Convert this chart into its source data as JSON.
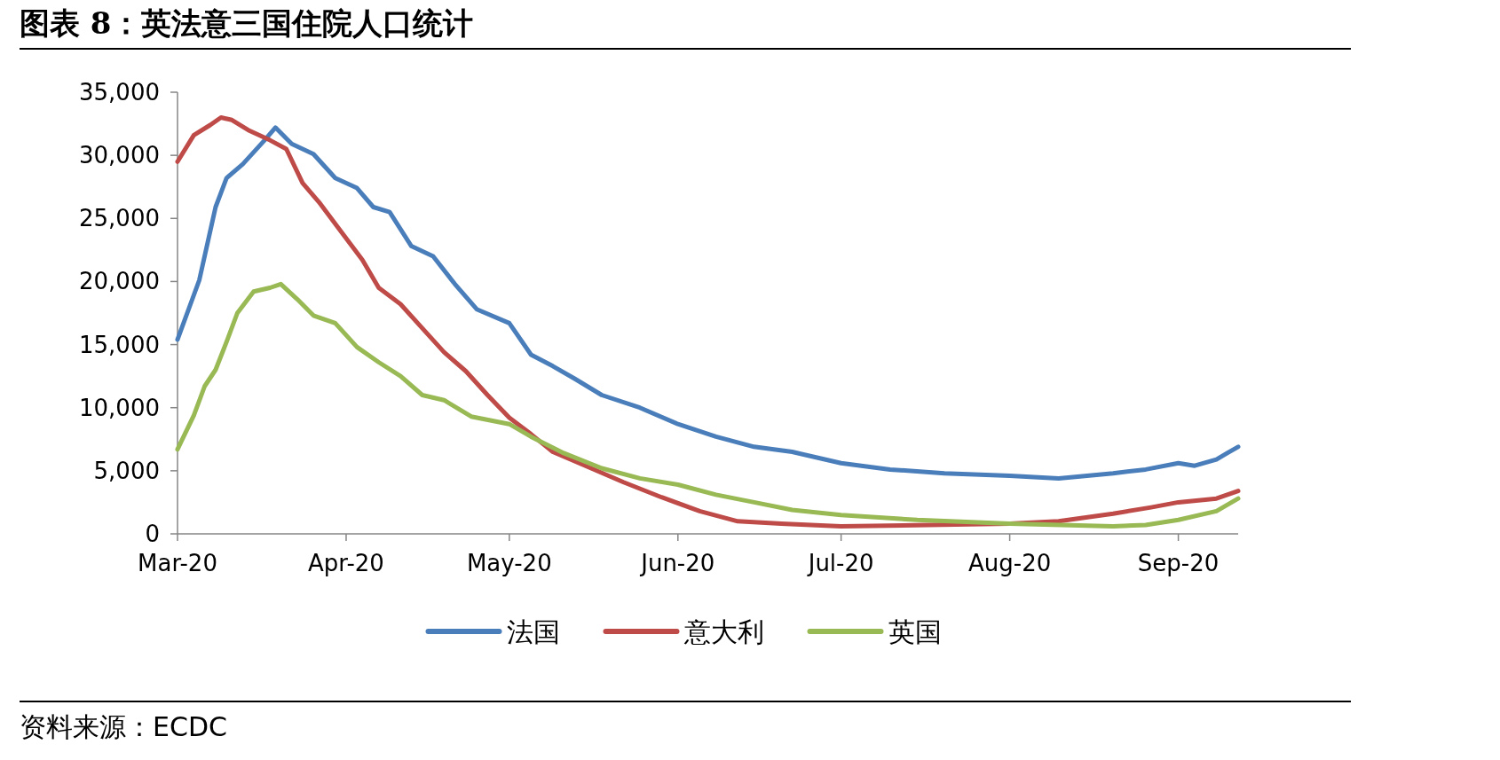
{
  "chart_data": {
    "type": "line",
    "title": "图表 8：英法意三国住院人口统计",
    "annotations": [
      "资料来源：ECDC"
    ],
    "legend": "bottom",
    "xlim": [
      "2020-03-01",
      "2020-09-12"
    ],
    "xticks": [
      {
        "value": "2020-03-01",
        "label": "Mar-20"
      },
      {
        "value": "2020-04-01",
        "label": "Apr-20"
      },
      {
        "value": "2020-05-01",
        "label": "May-20"
      },
      {
        "value": "2020-06-01",
        "label": "Jun-20"
      },
      {
        "value": "2020-07-01",
        "label": "Jul-20"
      },
      {
        "value": "2020-08-01",
        "label": "Aug-20"
      },
      {
        "value": "2020-09-01",
        "label": "Sep-20"
      }
    ],
    "ylim": [
      0,
      35000
    ],
    "yticks": [
      0,
      {
        "value": 5000,
        "label": "5,000"
      },
      {
        "value": 10000,
        "label": "10,000"
      },
      {
        "value": 15000,
        "label": "15,000"
      },
      {
        "value": 20000,
        "label": "20,000"
      },
      {
        "value": 25000,
        "label": "25,000"
      },
      {
        "value": 30000,
        "label": "30,000"
      },
      {
        "value": 35000,
        "label": "35,000"
      }
    ],
    "series": [
      {
        "name": "法国",
        "color": "#4a7ebb",
        "x": [
          "2020-03-01",
          "2020-03-05",
          "2020-03-08",
          "2020-03-10",
          "2020-03-13",
          "2020-03-17",
          "2020-03-19",
          "2020-03-22",
          "2020-03-26",
          "2020-03-30",
          "2020-04-03",
          "2020-04-06",
          "2020-04-09",
          "2020-04-13",
          "2020-04-17",
          "2020-04-21",
          "2020-04-25",
          "2020-05-01",
          "2020-05-05",
          "2020-05-09",
          "2020-05-13",
          "2020-05-18",
          "2020-05-25",
          "2020-06-01",
          "2020-06-08",
          "2020-06-15",
          "2020-06-22",
          "2020-07-01",
          "2020-07-10",
          "2020-07-20",
          "2020-08-01",
          "2020-08-10",
          "2020-08-20",
          "2020-08-26",
          "2020-09-01",
          "2020-09-04",
          "2020-09-08",
          "2020-09-10",
          "2020-09-12"
        ],
        "values": [
          15400,
          20100,
          25900,
          28200,
          29300,
          31200,
          32200,
          30900,
          30100,
          28200,
          27400,
          25900,
          25500,
          22800,
          22000,
          19800,
          17800,
          16700,
          14200,
          13300,
          12300,
          11000,
          10000,
          8700,
          7700,
          6900,
          6500,
          5600,
          5100,
          4800,
          4600,
          4400,
          4800,
          5100,
          5600,
          5400,
          5900,
          6400,
          6900
        ]
      },
      {
        "name": "意大利",
        "color": "#be4b48",
        "x": [
          "2020-03-01",
          "2020-03-04",
          "2020-03-07",
          "2020-03-09",
          "2020-03-11",
          "2020-03-14",
          "2020-03-18",
          "2020-03-21",
          "2020-03-24",
          "2020-03-27",
          "2020-03-31",
          "2020-04-04",
          "2020-04-07",
          "2020-04-11",
          "2020-04-15",
          "2020-04-19",
          "2020-04-23",
          "2020-04-27",
          "2020-05-01",
          "2020-05-05",
          "2020-05-09",
          "2020-05-15",
          "2020-05-22",
          "2020-05-29",
          "2020-06-05",
          "2020-06-12",
          "2020-06-20",
          "2020-07-01",
          "2020-08-01",
          "2020-08-10",
          "2020-08-20",
          "2020-08-27",
          "2020-09-01",
          "2020-09-08",
          "2020-09-12"
        ],
        "values": [
          29500,
          31600,
          32400,
          33000,
          32800,
          32000,
          31200,
          30500,
          27800,
          26300,
          24000,
          21700,
          19500,
          18200,
          16300,
          14400,
          12900,
          11000,
          9200,
          7900,
          6500,
          5400,
          4100,
          2900,
          1800,
          1000,
          800,
          600,
          800,
          1000,
          1600,
          2100,
          2500,
          2800,
          3400
        ]
      },
      {
        "name": "英国",
        "color": "#98b954",
        "x": [
          "2020-03-01",
          "2020-03-04",
          "2020-03-06",
          "2020-03-08",
          "2020-03-10",
          "2020-03-12",
          "2020-03-15",
          "2020-03-18",
          "2020-03-20",
          "2020-03-23",
          "2020-03-26",
          "2020-03-30",
          "2020-04-03",
          "2020-04-07",
          "2020-04-11",
          "2020-04-15",
          "2020-04-19",
          "2020-04-24",
          "2020-05-01",
          "2020-05-05",
          "2020-05-11",
          "2020-05-18",
          "2020-05-25",
          "2020-06-01",
          "2020-06-08",
          "2020-06-15",
          "2020-06-22",
          "2020-07-01",
          "2020-07-15",
          "2020-08-01",
          "2020-08-20",
          "2020-08-26",
          "2020-09-01",
          "2020-09-08",
          "2020-09-12"
        ],
        "values": [
          6700,
          9400,
          11700,
          13000,
          15200,
          17500,
          19200,
          19500,
          19800,
          18600,
          17300,
          16700,
          14800,
          13600,
          12500,
          11000,
          10600,
          9300,
          8700,
          7700,
          6400,
          5200,
          4400,
          3900,
          3100,
          2500,
          1900,
          1500,
          1100,
          800,
          600,
          700,
          1100,
          1800,
          2800
        ]
      }
    ]
  }
}
